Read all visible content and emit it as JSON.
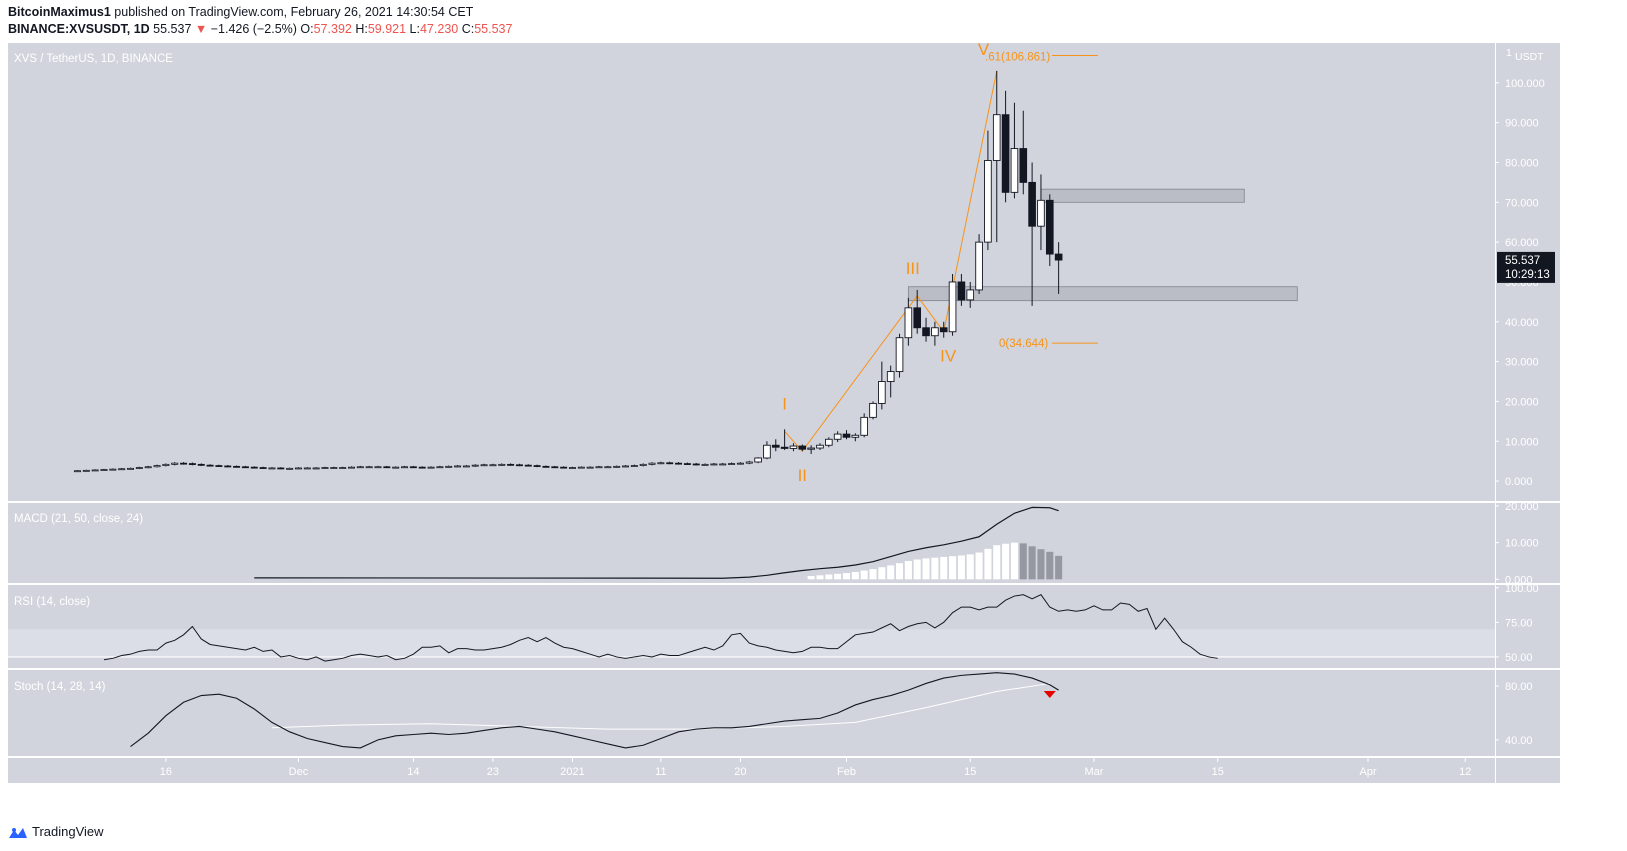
{
  "header": {
    "author": "BitcoinMaximus1",
    "published_text": "published on TradingView.com, February 26, 2021 14:30:54 CET",
    "symbol": "BINANCE:XVSUSDT, 1D",
    "last": "55.537",
    "arrow": "▼",
    "change": "−1.426 (−2.5%)",
    "o_label": "O:",
    "o_value": "57.392",
    "h_label": "H:",
    "h_value": "59.921",
    "l_label": "L:",
    "l_value": "47.230",
    "c_label": "C:",
    "c_value": "55.537"
  },
  "footer": {
    "brand": "TradingView"
  },
  "chart_data": {
    "type": "candlestick",
    "title": "XVS / TetherUS, 1D, BINANCE",
    "currency": "USDT",
    "price_axis": {
      "range": [
        -5,
        110
      ],
      "ticks": [
        0,
        10,
        20,
        30,
        40,
        50,
        60,
        70,
        80,
        90,
        100
      ],
      "tick_labels": [
        "0.000",
        "10.000",
        "20.000",
        "30.000",
        "40.000",
        "50.000",
        "60.000",
        "70.000",
        "80.000",
        "90.000",
        "100.000"
      ],
      "top_label": "1"
    },
    "last_price": {
      "value": 55.537,
      "label": "55.537",
      "countdown": "10:29:13"
    },
    "time_axis": {
      "range": [
        -7,
        136
      ],
      "ticks": [
        {
          "day": 0,
          "label": "16"
        },
        {
          "day": 15,
          "label": "Dec"
        },
        {
          "day": 28,
          "label": "14"
        },
        {
          "day": 37,
          "label": "23"
        },
        {
          "day": 46,
          "label": "2021"
        },
        {
          "day": 56,
          "label": "11"
        },
        {
          "day": 65,
          "label": "20"
        },
        {
          "day": 77,
          "label": "Feb"
        },
        {
          "day": 91,
          "label": "15"
        },
        {
          "day": 105,
          "label": "Mar"
        },
        {
          "day": 119,
          "label": "15"
        },
        {
          "day": 136,
          "label": "Apr"
        },
        {
          "day": 147,
          "label": "12"
        }
      ]
    },
    "candles_flat": {
      "start_day": -10,
      "end_day": 66,
      "closes": [
        2.6,
        2.7,
        2.8,
        2.9,
        3.0,
        3.1,
        3.2,
        3.4,
        3.6,
        3.9,
        4.2,
        4.5,
        4.4,
        4.2,
        4.0,
        3.9,
        3.8,
        3.7,
        3.6,
        3.5,
        3.4,
        3.3,
        3.3,
        3.2,
        3.2,
        3.3,
        3.3,
        3.3,
        3.4,
        3.4,
        3.4,
        3.5,
        3.6,
        3.6,
        3.6,
        3.5,
        3.5,
        3.6,
        3.5,
        3.4,
        3.5,
        3.6,
        3.7,
        3.8,
        3.8,
        4.0,
        4.1,
        4.1,
        4.2,
        4.1,
        4.0,
        3.9,
        3.7,
        3.6,
        3.5,
        3.4,
        3.4,
        3.5,
        3.5,
        3.6,
        3.6,
        3.7,
        3.8,
        3.9,
        4.2,
        4.5,
        4.6,
        4.5,
        4.4,
        4.3,
        4.2,
        4.2,
        4.3,
        4.3,
        4.4,
        4.5,
        4.8
      ]
    },
    "candles": [
      {
        "day": 67,
        "o": 4.8,
        "h": 6.0,
        "l": 4.5,
        "c": 5.8
      },
      {
        "day": 68,
        "o": 5.8,
        "h": 10.0,
        "l": 5.5,
        "c": 9.0
      },
      {
        "day": 69,
        "o": 9.0,
        "h": 10.5,
        "l": 7.5,
        "c": 8.5
      },
      {
        "day": 70,
        "o": 8.5,
        "h": 13.0,
        "l": 7.8,
        "c": 8.2
      },
      {
        "day": 71,
        "o": 8.2,
        "h": 9.5,
        "l": 7.5,
        "c": 8.8
      },
      {
        "day": 72,
        "o": 8.8,
        "h": 9.2,
        "l": 7.5,
        "c": 8.0
      },
      {
        "day": 73,
        "o": 8.0,
        "h": 9.0,
        "l": 6.8,
        "c": 8.3
      },
      {
        "day": 74,
        "o": 8.3,
        "h": 9.5,
        "l": 7.8,
        "c": 9.0
      },
      {
        "day": 75,
        "o": 9.0,
        "h": 11.0,
        "l": 8.5,
        "c": 10.5
      },
      {
        "day": 76,
        "o": 10.5,
        "h": 12.5,
        "l": 9.8,
        "c": 11.8
      },
      {
        "day": 77,
        "o": 11.8,
        "h": 12.8,
        "l": 10.5,
        "c": 11.0
      },
      {
        "day": 78,
        "o": 11.0,
        "h": 12.0,
        "l": 10.0,
        "c": 11.5
      },
      {
        "day": 79,
        "o": 11.5,
        "h": 17.0,
        "l": 11.0,
        "c": 16.0
      },
      {
        "day": 80,
        "o": 16.0,
        "h": 20.0,
        "l": 15.5,
        "c": 19.5
      },
      {
        "day": 81,
        "o": 19.5,
        "h": 30.0,
        "l": 18.0,
        "c": 25.0
      },
      {
        "day": 82,
        "o": 25.0,
        "h": 29.0,
        "l": 21.0,
        "c": 27.5
      },
      {
        "day": 83,
        "o": 27.5,
        "h": 37.0,
        "l": 26.0,
        "c": 36.0
      },
      {
        "day": 84,
        "o": 36.0,
        "h": 46.0,
        "l": 34.0,
        "c": 43.5
      },
      {
        "day": 85,
        "o": 43.5,
        "h": 48.0,
        "l": 37.0,
        "c": 38.5
      },
      {
        "day": 86,
        "o": 38.5,
        "h": 41.0,
        "l": 35.0,
        "c": 36.5
      },
      {
        "day": 87,
        "o": 36.5,
        "h": 40.0,
        "l": 34.0,
        "c": 38.5
      },
      {
        "day": 88,
        "o": 38.5,
        "h": 40.0,
        "l": 36.0,
        "c": 37.5
      },
      {
        "day": 89,
        "o": 37.5,
        "h": 52.0,
        "l": 36.5,
        "c": 50.0
      },
      {
        "day": 90,
        "o": 50.0,
        "h": 52.0,
        "l": 44.0,
        "c": 45.5
      },
      {
        "day": 91,
        "o": 45.5,
        "h": 50.0,
        "l": 43.5,
        "c": 48.0
      },
      {
        "day": 92,
        "o": 48.0,
        "h": 62.0,
        "l": 47.0,
        "c": 60.0
      },
      {
        "day": 93,
        "o": 60.0,
        "h": 88.0,
        "l": 58.0,
        "c": 80.5
      },
      {
        "day": 94,
        "o": 80.5,
        "h": 103.0,
        "l": 60.0,
        "c": 92.0
      },
      {
        "day": 95,
        "o": 92.0,
        "h": 98.0,
        "l": 70.0,
        "c": 72.5
      },
      {
        "day": 96,
        "o": 72.5,
        "h": 95.0,
        "l": 71.0,
        "c": 83.5
      },
      {
        "day": 97,
        "o": 83.5,
        "h": 93.0,
        "l": 72.0,
        "c": 75.0
      },
      {
        "day": 98,
        "o": 75.0,
        "h": 80.0,
        "l": 44.0,
        "c": 64.0
      },
      {
        "day": 99,
        "o": 64.0,
        "h": 77.0,
        "l": 58.0,
        "c": 70.5
      },
      {
        "day": 100,
        "o": 70.5,
        "h": 72.0,
        "l": 54.0,
        "c": 57.0
      },
      {
        "day": 101,
        "o": 57.0,
        "h": 60.0,
        "l": 47.0,
        "c": 55.5
      }
    ],
    "zones": [
      {
        "from_day": 99,
        "to_day": 122,
        "low": 70.0,
        "high": 73.3
      },
      {
        "from_day": 84,
        "to_day": 128,
        "low": 45.3,
        "high": 48.8
      }
    ],
    "fib": [
      {
        "label": "V.61(106.861)",
        "value": 106.861
      },
      {
        "label": "0(34.644)",
        "value": 34.644
      }
    ],
    "waves": {
      "path": [
        [
          70,
          12.5
        ],
        [
          72,
          7.5
        ],
        [
          85,
          46.5
        ],
        [
          88,
          37.5
        ],
        [
          94,
          103
        ]
      ],
      "labels": [
        {
          "text": "I",
          "day": 70,
          "value": 18
        },
        {
          "text": "II",
          "day": 72,
          "value": 0
        },
        {
          "text": "III",
          "day": 84.5,
          "value": 52
        },
        {
          "text": "IV",
          "day": 88.5,
          "value": 30
        },
        {
          "text": "V",
          "day": 92.5,
          "value": 107
        }
      ]
    },
    "macd": {
      "title": "MACD (21, 50, close, 24)",
      "range": [
        -1,
        20.8
      ],
      "ticks": [
        0,
        10,
        20
      ],
      "tick_labels": [
        "0.000",
        "10.000",
        "20.000"
      ],
      "line_days": [
        10,
        63,
        66,
        68,
        70,
        72,
        74,
        76,
        78,
        80,
        82,
        84,
        86,
        88,
        90,
        92,
        94,
        96,
        98,
        100,
        101
      ],
      "line_values": [
        0.4,
        0.3,
        0.6,
        1.1,
        1.8,
        2.4,
        2.9,
        3.3,
        3.9,
        4.8,
        6.2,
        7.6,
        8.6,
        9.4,
        10.4,
        11.6,
        15.0,
        18.0,
        19.6,
        19.5,
        18.7
      ],
      "hist_start_day": 73,
      "hist_values": [
        0.9,
        1.1,
        1.3,
        1.5,
        1.7,
        2.0,
        2.4,
        2.8,
        3.3,
        3.8,
        4.4,
        5.0,
        5.4,
        5.7,
        5.9,
        6.1,
        6.3,
        6.5,
        6.8,
        7.3,
        8.3,
        9.3,
        9.7,
        10.0,
        9.8,
        9.0,
        8.2,
        7.5,
        6.4
      ]
    },
    "rsi": {
      "title": "RSI (14, close)",
      "range": [
        42,
        102
      ],
      "ticks": [
        50,
        75,
        100
      ],
      "tick_labels": [
        "50.00",
        "75.00",
        "100.00"
      ],
      "band": [
        50,
        70
      ],
      "start_day": -7,
      "values": [
        48,
        49,
        51,
        52,
        54,
        55,
        55,
        60,
        62,
        66,
        72,
        63,
        59,
        58,
        57,
        56,
        55,
        57,
        54,
        55,
        50,
        51,
        49,
        48,
        50,
        47,
        48,
        49,
        51,
        52,
        51,
        50,
        51,
        48,
        49,
        52,
        57,
        57,
        58,
        53,
        56,
        56,
        55,
        55,
        56,
        57,
        59,
        62,
        64,
        61,
        64,
        60,
        57,
        56,
        54,
        52,
        50,
        52,
        50,
        49,
        50,
        51,
        50,
        52,
        51,
        51,
        53,
        55,
        57,
        55,
        58,
        66,
        67,
        60,
        58,
        57,
        55,
        54,
        53,
        54,
        57,
        57,
        56,
        56,
        61,
        66,
        67,
        68,
        71,
        74,
        69,
        72,
        74,
        75,
        71,
        75,
        82,
        86,
        86,
        84,
        86,
        86,
        91,
        94,
        95,
        92,
        95,
        86,
        83,
        84,
        83,
        84,
        87,
        84,
        84,
        89,
        88,
        83,
        85,
        70,
        78,
        70,
        61,
        57,
        52,
        50,
        49
      ]
    },
    "stoch": {
      "title": "Stoch (14, 28, 14)",
      "range": [
        28,
        92
      ],
      "ticks": [
        40,
        80
      ],
      "tick_labels": [
        "40.00",
        "80.00"
      ],
      "k_days": [
        -4,
        -2,
        0,
        2,
        4,
        6,
        8,
        10,
        12,
        14,
        16,
        18,
        20,
        22,
        24,
        26,
        28,
        30,
        32,
        34,
        36,
        38,
        40,
        42,
        44,
        46,
        48,
        50,
        52,
        54,
        56,
        58,
        60,
        62,
        64,
        66,
        68,
        70,
        72,
        74,
        76,
        78,
        80,
        82,
        84,
        86,
        88,
        90,
        92,
        94,
        96,
        98,
        100,
        101
      ],
      "k_values": [
        35,
        45,
        58,
        68,
        73,
        74,
        71,
        63,
        53,
        46,
        41,
        38,
        35,
        34,
        40,
        43,
        44,
        45,
        44,
        45,
        47,
        49,
        50,
        48,
        46,
        43,
        40,
        37,
        34,
        36,
        41,
        46,
        48,
        49,
        49,
        50,
        52,
        54,
        55,
        56,
        60,
        66,
        70,
        73,
        77,
        82,
        86,
        88,
        89,
        90,
        89,
        86,
        81,
        77
      ],
      "d_days": [
        12,
        20,
        30,
        40,
        50,
        60,
        70,
        78,
        86,
        94,
        100
      ],
      "d_values": [
        49,
        51,
        52,
        50,
        48,
        48,
        50,
        53,
        64,
        76,
        82
      ],
      "marker_day": 100
    }
  }
}
